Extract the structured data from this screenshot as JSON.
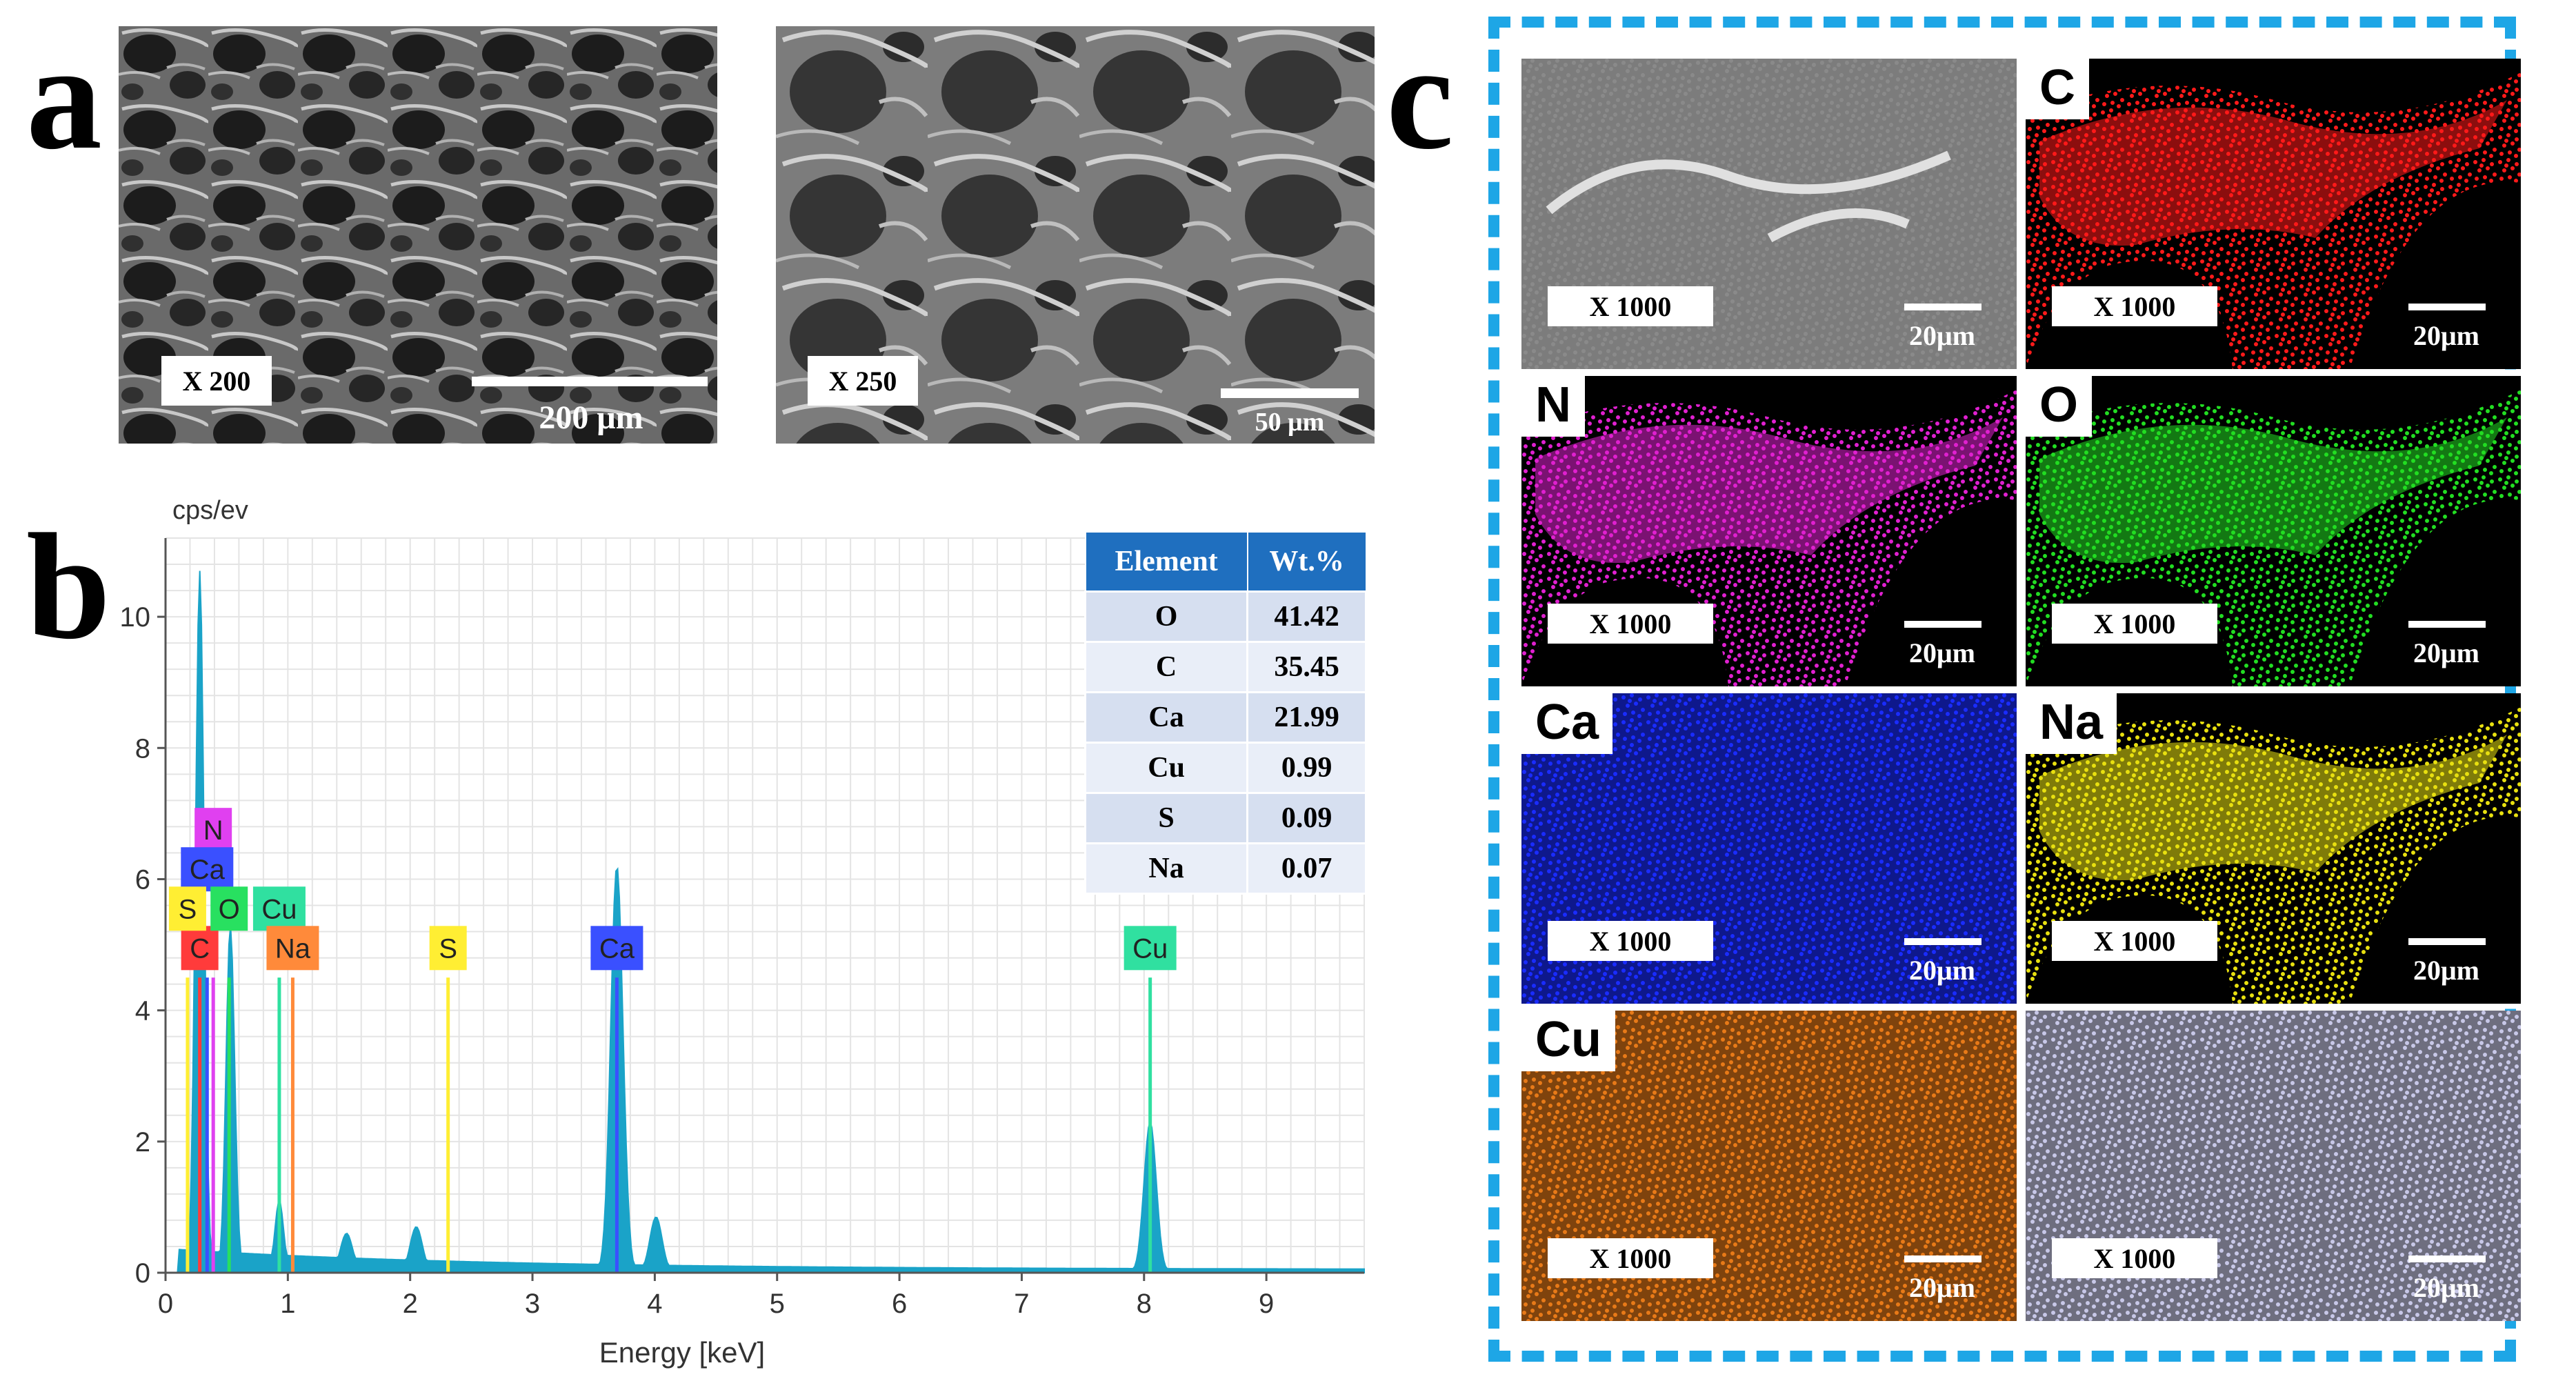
{
  "panels": {
    "a": {
      "label": "a",
      "images": [
        {
          "magnification": "X 200",
          "scale": "200 μm"
        },
        {
          "magnification": "X 250",
          "scale": "50 μm"
        }
      ]
    },
    "b": {
      "label": "b",
      "table": {
        "headers": [
          "Element",
          "Wt.%"
        ],
        "rows": [
          [
            "O",
            "41.42"
          ],
          [
            "C",
            "35.45"
          ],
          [
            "Ca",
            "21.99"
          ],
          [
            "Cu",
            "0.99"
          ],
          [
            "S",
            "0.09"
          ],
          [
            "Na",
            "0.07"
          ]
        ]
      }
    },
    "c": {
      "label": "c",
      "tiles": [
        {
          "element": "",
          "magnification": "X 1000",
          "scale": "20μm",
          "color": "#8a8a8a"
        },
        {
          "element": "C",
          "magnification": "X 1000",
          "scale": "20μm",
          "color": "#ff1a1a"
        },
        {
          "element": "N",
          "magnification": "X 1000",
          "scale": "20μm",
          "color": "#e020d0"
        },
        {
          "element": "O",
          "magnification": "X 1000",
          "scale": "20μm",
          "color": "#22dd22"
        },
        {
          "element": "Ca",
          "magnification": "X 1000",
          "scale": "20μm",
          "color": "#1a2cff"
        },
        {
          "element": "Na",
          "magnification": "X 1000",
          "scale": "20μm",
          "color": "#e8e010"
        },
        {
          "element": "Cu",
          "magnification": "X 1000",
          "scale": "20μm",
          "color": "#e87a18"
        },
        {
          "element": "",
          "magnification": "X 1000",
          "scale": "20μm",
          "color": "#c8c8e8"
        }
      ]
    }
  },
  "chart_data": {
    "type": "line",
    "ylabel": "cps/ev",
    "xlabel": "Energy [keV]",
    "xlim": [
      0,
      9.8
    ],
    "ylim": [
      0,
      11.2
    ],
    "x_ticks": [
      0,
      1,
      2,
      3,
      4,
      5,
      6,
      7,
      8,
      9
    ],
    "y_ticks": [
      0,
      2,
      4,
      6,
      8,
      10
    ],
    "grid": true,
    "spectrum_color": "#1aa3c8",
    "peaks": [
      {
        "x": 0.28,
        "y": 10.7
      },
      {
        "x": 0.53,
        "y": 5.3
      },
      {
        "x": 0.93,
        "y": 1.1
      },
      {
        "x": 1.48,
        "y": 0.6
      },
      {
        "x": 2.05,
        "y": 0.7
      },
      {
        "x": 3.69,
        "y": 6.2
      },
      {
        "x": 4.01,
        "y": 0.85
      },
      {
        "x": 8.05,
        "y": 2.3
      }
    ],
    "element_markers": [
      {
        "label": "C",
        "x": 0.28,
        "y": 4.5,
        "color": "#ff3b3b",
        "label_y": 4.95
      },
      {
        "label": "N",
        "x": 0.39,
        "y": 4.5,
        "color": "#e040f0",
        "label_y": 6.75
      },
      {
        "label": "Ca",
        "x": 0.34,
        "y": 4.5,
        "color": "#3a50ff",
        "label_y": 6.15
      },
      {
        "label": "S",
        "x": 0.18,
        "y": 4.5,
        "color": "#ffee33",
        "label_y": 5.55
      },
      {
        "label": "O",
        "x": 0.52,
        "y": 4.5,
        "color": "#28e060",
        "label_y": 5.55
      },
      {
        "label": "Cu",
        "x": 0.93,
        "y": 4.5,
        "color": "#30e0a0",
        "label_y": 5.55
      },
      {
        "label": "Na",
        "x": 1.04,
        "y": 4.5,
        "color": "#ff8a3a",
        "label_y": 4.95
      },
      {
        "label": "S",
        "x": 2.31,
        "y": 4.5,
        "color": "#ffee33",
        "label_y": 4.95
      },
      {
        "label": "Ca",
        "x": 3.69,
        "y": 4.5,
        "color": "#3a50ff",
        "label_y": 4.95
      },
      {
        "label": "Cu",
        "x": 8.05,
        "y": 4.5,
        "color": "#30e0a0",
        "label_y": 4.95
      }
    ]
  }
}
